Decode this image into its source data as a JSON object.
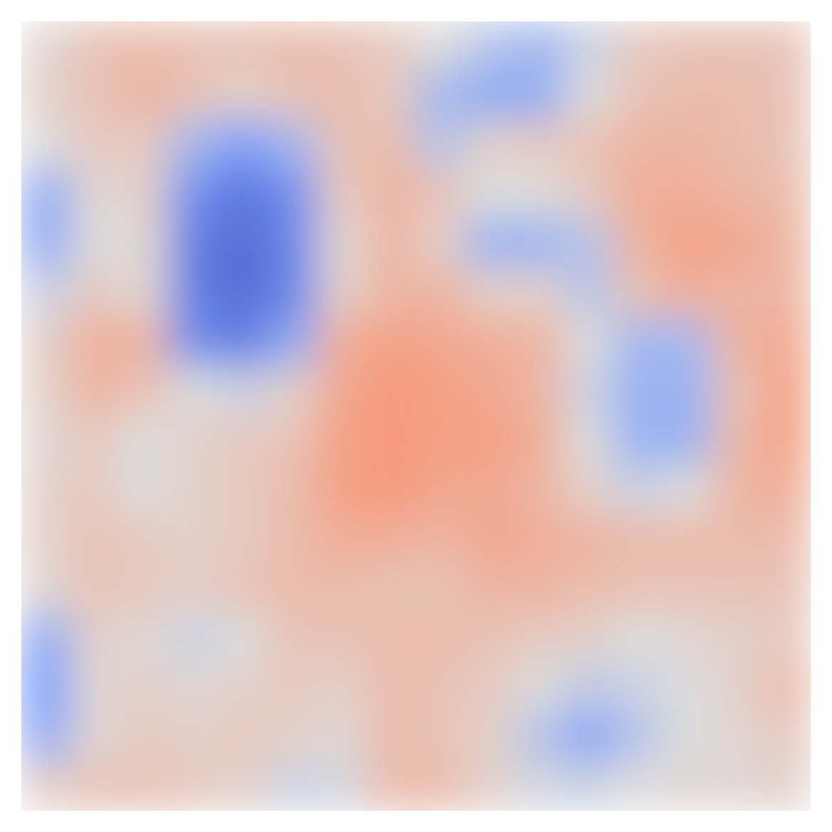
{
  "chart_data": {
    "type": "heatmap",
    "tick_labels": false,
    "color_range": [
      -1,
      1
    ],
    "cells": [
      [
        0.05,
        0.2,
        0.25,
        0.2,
        0.2,
        0.25,
        0.2,
        0.15,
        0.0,
        -0.2,
        -0.3,
        -0.1,
        0.15,
        0.2,
        0.2,
        0.2
      ],
      [
        0.1,
        0.2,
        0.3,
        0.2,
        0.1,
        0.2,
        0.25,
        0.15,
        -0.3,
        -0.4,
        -0.4,
        0.0,
        0.2,
        0.25,
        0.25,
        0.2
      ],
      [
        0.0,
        0.15,
        0.15,
        -0.3,
        -0.5,
        -0.3,
        0.2,
        0.25,
        -0.2,
        0.1,
        0.15,
        0.2,
        0.3,
        0.3,
        0.25,
        0.2
      ],
      [
        -0.4,
        0.05,
        0.1,
        -0.6,
        -0.75,
        -0.6,
        0.15,
        0.3,
        0.2,
        0.0,
        0.0,
        0.15,
        0.35,
        0.35,
        0.3,
        0.25
      ],
      [
        -0.4,
        0.0,
        0.05,
        -0.7,
        -0.8,
        -0.65,
        0.05,
        0.3,
        0.1,
        -0.35,
        -0.35,
        -0.2,
        0.3,
        0.45,
        0.4,
        0.3
      ],
      [
        -0.1,
        0.15,
        0.05,
        -0.7,
        -0.8,
        -0.65,
        0.1,
        0.3,
        0.3,
        0.1,
        0.1,
        -0.2,
        0.2,
        0.35,
        0.3,
        0.3
      ],
      [
        0.1,
        0.35,
        0.3,
        -0.6,
        -0.7,
        -0.4,
        0.35,
        0.45,
        0.4,
        0.35,
        0.3,
        0.0,
        -0.3,
        -0.3,
        0.3,
        0.4
      ],
      [
        0.1,
        0.3,
        0.2,
        0.0,
        -0.1,
        0.1,
        0.4,
        0.5,
        0.45,
        0.4,
        0.3,
        -0.1,
        -0.35,
        -0.35,
        0.2,
        0.45
      ],
      [
        0.05,
        0.15,
        0.0,
        0.1,
        0.15,
        0.2,
        0.45,
        0.5,
        0.45,
        0.45,
        0.35,
        0.0,
        -0.35,
        -0.35,
        0.25,
        0.45
      ],
      [
        0.1,
        0.15,
        0.0,
        0.1,
        0.15,
        0.25,
        0.45,
        0.5,
        0.4,
        0.4,
        0.3,
        0.1,
        -0.1,
        0.0,
        0.3,
        0.35
      ],
      [
        0.1,
        0.2,
        0.15,
        0.1,
        0.15,
        0.25,
        0.35,
        0.35,
        0.3,
        0.4,
        0.35,
        0.3,
        0.25,
        0.25,
        0.25,
        0.25
      ],
      [
        0.05,
        0.2,
        0.15,
        0.1,
        0.2,
        0.25,
        0.25,
        0.2,
        0.2,
        0.3,
        0.3,
        0.25,
        0.2,
        0.2,
        0.2,
        0.2
      ],
      [
        -0.4,
        0.1,
        0.05,
        -0.1,
        0.0,
        0.2,
        0.2,
        0.25,
        0.25,
        0.2,
        0.15,
        0.1,
        0.0,
        0.05,
        0.1,
        0.15
      ],
      [
        -0.5,
        0.05,
        0.1,
        0.05,
        0.1,
        0.15,
        0.1,
        0.25,
        0.2,
        0.15,
        0.0,
        -0.15,
        -0.1,
        0.0,
        0.1,
        0.25
      ],
      [
        -0.4,
        0.05,
        0.15,
        0.1,
        0.15,
        0.1,
        0.05,
        0.25,
        0.2,
        0.1,
        -0.2,
        -0.45,
        -0.2,
        0.0,
        0.05,
        0.15
      ],
      [
        0.1,
        0.2,
        0.2,
        0.15,
        0.1,
        -0.1,
        -0.05,
        0.25,
        0.25,
        0.1,
        -0.05,
        -0.1,
        0.0,
        0.05,
        0.05,
        0.1
      ]
    ]
  }
}
